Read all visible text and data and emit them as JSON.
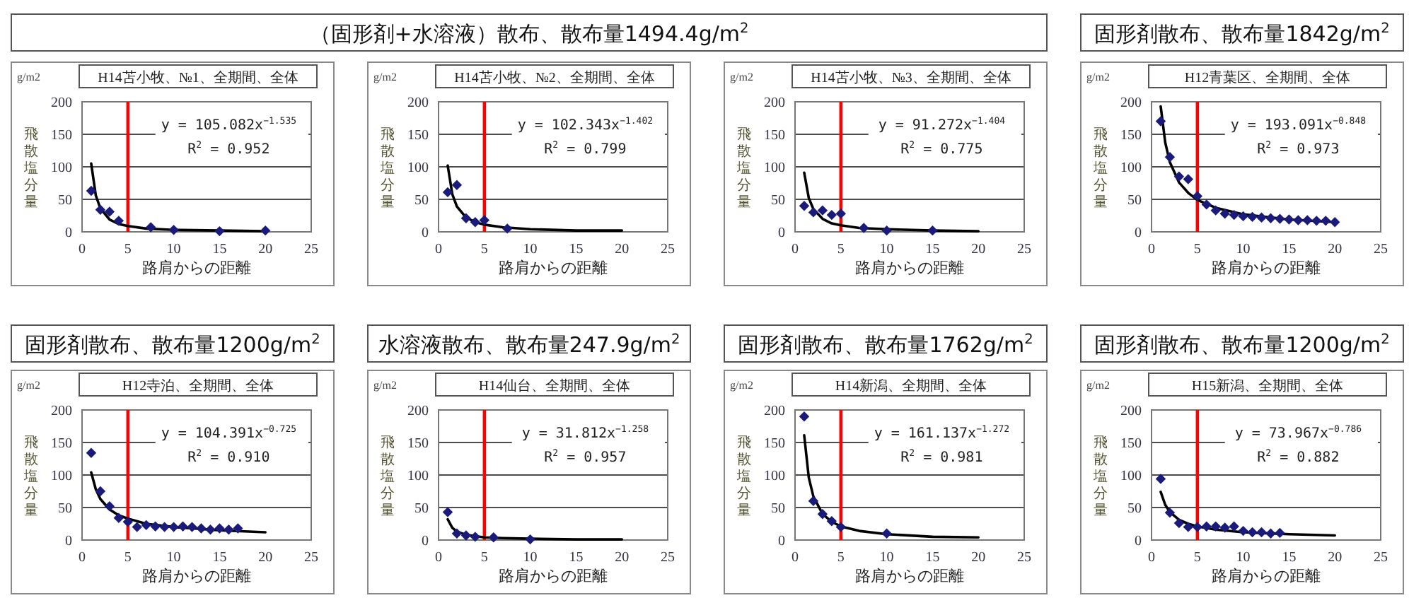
{
  "chart_data": [
    {
      "type": "scatter",
      "title": "H14苫小牧、№1、全期間、全体",
      "xlabel": "路肩からの距離",
      "ylabel": "飛散塩分量",
      "annotations": [
        "g/m2",
        "y = 105.082x$^{−1.535}$",
        "R$^{2}$ = 0.952"
      ],
      "xlim": [
        0,
        25
      ],
      "xticks": [
        0,
        5,
        10,
        15,
        20,
        25
      ],
      "ylim": [
        0,
        200
      ],
      "yticks": [
        0,
        50,
        100,
        150,
        200
      ],
      "grid": "y",
      "ref_lines": [
        {
          "axis": "x",
          "value": 5,
          "color": "#ff0000"
        }
      ],
      "series": [
        {
          "type": "scatter",
          "marker": "diamond",
          "color": "#1a1a7a",
          "x": [
            1,
            2,
            3,
            4,
            7.5,
            10,
            15,
            20
          ],
          "values": [
            63,
            34,
            31,
            17,
            7,
            3,
            1,
            2
          ]
        },
        {
          "type": "line",
          "color": "#000000",
          "x": [
            1,
            1.5,
            2,
            3,
            4,
            5,
            7,
            10,
            15,
            20
          ],
          "values": [
            105,
            56,
            36,
            19,
            12,
            9,
            5,
            3,
            2,
            1
          ]
        }
      ]
    },
    {
      "type": "scatter",
      "subtitle": "（固形剤+水溶液）散布、散布量1494.4g/m$^{2}$",
      "title": "H14苫小牧、№2、全期間、全体",
      "xlabel": "路肩からの距離",
      "ylabel": "飛散塩分量",
      "annotations": [
        "g/m2",
        "y = 102.343x$^{−1.402}$",
        "R$^{2}$ = 0.799"
      ],
      "xlim": [
        0,
        25
      ],
      "xticks": [
        0,
        5,
        10,
        15,
        20,
        25
      ],
      "ylim": [
        0,
        200
      ],
      "yticks": [
        0,
        50,
        100,
        150,
        200
      ],
      "grid": "y",
      "ref_lines": [
        {
          "axis": "x",
          "value": 5,
          "color": "#ff0000"
        }
      ],
      "series": [
        {
          "type": "scatter",
          "marker": "diamond",
          "color": "#1a1a7a",
          "x": [
            1,
            2,
            3,
            4,
            5,
            7.5
          ],
          "values": [
            61,
            72,
            21,
            15,
            18,
            5
          ]
        },
        {
          "type": "line",
          "color": "#000000",
          "x": [
            1,
            1.5,
            2,
            3,
            4,
            5,
            7,
            10,
            15,
            20
          ],
          "values": [
            102,
            58,
            39,
            22,
            15,
            11,
            7,
            4,
            2,
            2
          ]
        }
      ]
    },
    {
      "type": "scatter",
      "title": "H14苫小牧、№3、全期間、全体",
      "xlabel": "路肩からの距離",
      "ylabel": "飛散塩分量",
      "annotations": [
        "g/m2",
        "y = 91.272x$^{−1.404}$",
        "R$^{2}$ = 0.775"
      ],
      "xlim": [
        0,
        25
      ],
      "xticks": [
        0,
        5,
        10,
        15,
        20,
        25
      ],
      "ylim": [
        0,
        200
      ],
      "yticks": [
        0,
        50,
        100,
        150,
        200
      ],
      "grid": "y",
      "ref_lines": [
        {
          "axis": "x",
          "value": 5,
          "color": "#ff0000"
        }
      ],
      "series": [
        {
          "type": "scatter",
          "marker": "diamond",
          "color": "#1a1a7a",
          "x": [
            1,
            2,
            3,
            4,
            5,
            7.5,
            10,
            15
          ],
          "values": [
            40,
            30,
            33,
            26,
            28,
            6,
            2,
            2
          ]
        },
        {
          "type": "line",
          "color": "#000000",
          "x": [
            1,
            1.5,
            2,
            3,
            4,
            5,
            7,
            10,
            15,
            20
          ],
          "values": [
            91,
            52,
            35,
            20,
            13,
            10,
            6,
            4,
            2,
            1
          ]
        }
      ]
    },
    {
      "type": "scatter",
      "subtitle": "固形剤散布、散布量1842g/m$^{2}$",
      "title": "H12青葉区、全期間、全体",
      "xlabel": "路肩からの距離",
      "ylabel": "飛散塩分量",
      "annotations": [
        "g/m2",
        "y = 193.091x$^{−0.848}$",
        "R$^{2}$ = 0.973"
      ],
      "xlim": [
        0,
        25
      ],
      "xticks": [
        0,
        5,
        10,
        15,
        20,
        25
      ],
      "ylim": [
        0,
        200
      ],
      "yticks": [
        0,
        50,
        100,
        150,
        200
      ],
      "grid": "y",
      "ref_lines": [
        {
          "axis": "x",
          "value": 5,
          "color": "#ff0000"
        }
      ],
      "series": [
        {
          "type": "scatter",
          "marker": "diamond",
          "color": "#1a1a7a",
          "x": [
            1,
            2,
            3,
            4,
            5,
            6,
            7,
            8,
            9,
            10,
            11,
            12,
            13,
            14,
            15,
            16,
            17,
            18,
            19,
            20
          ],
          "values": [
            170,
            115,
            85,
            81,
            55,
            42,
            33,
            28,
            26,
            24,
            23,
            22,
            21,
            20,
            19,
            18,
            18,
            17,
            17,
            15
          ]
        },
        {
          "type": "line",
          "color": "#000000",
          "x": [
            1,
            1.5,
            2,
            3,
            4,
            5,
            7,
            10,
            15,
            20
          ],
          "values": [
            193,
            137,
            107,
            76,
            60,
            49,
            37,
            27,
            19,
            15
          ]
        }
      ]
    },
    {
      "type": "scatter",
      "subtitle": "固形剤散布、散布量1200g/m$^{2}$",
      "title": "H12寺泊、全期間、全体",
      "xlabel": "路肩からの距離",
      "ylabel": "飛散塩分量",
      "annotations": [
        "g/m2",
        "y = 104.391x$^{−0.725}$",
        "R$^{2}$ = 0.910"
      ],
      "xlim": [
        0,
        25
      ],
      "xticks": [
        0,
        5,
        10,
        15,
        20,
        25
      ],
      "ylim": [
        0,
        200
      ],
      "yticks": [
        0,
        50,
        100,
        150,
        200
      ],
      "grid": "y",
      "ref_lines": [
        {
          "axis": "x",
          "value": 5,
          "color": "#ff0000"
        }
      ],
      "series": [
        {
          "type": "scatter",
          "marker": "diamond",
          "color": "#1a1a7a",
          "x": [
            1,
            2,
            3,
            4,
            5,
            6,
            7,
            8,
            9,
            10,
            11,
            12,
            13,
            14,
            15,
            16,
            17
          ],
          "values": [
            134,
            75,
            52,
            34,
            28,
            20,
            23,
            21,
            20,
            20,
            21,
            20,
            18,
            16,
            18,
            16,
            18
          ]
        },
        {
          "type": "line",
          "color": "#000000",
          "x": [
            1,
            1.5,
            2,
            3,
            4,
            5,
            7,
            10,
            15,
            20
          ],
          "values": [
            104,
            78,
            63,
            47,
            38,
            33,
            25,
            20,
            15,
            12
          ]
        }
      ]
    },
    {
      "type": "scatter",
      "subtitle": "水溶液散布、散布量247.9g/m$^{2}$",
      "title": "H14仙台、全期間、全体",
      "xlabel": "路肩からの距離",
      "ylabel": "飛散塩分量",
      "annotations": [
        "g/m2",
        "y = 31.812x$^{−1.258}$",
        "R$^{2}$ = 0.957"
      ],
      "xlim": [
        0,
        25
      ],
      "xticks": [
        0,
        5,
        10,
        15,
        20,
        25
      ],
      "ylim": [
        0,
        200
      ],
      "yticks": [
        0,
        50,
        100,
        150,
        200
      ],
      "grid": "y",
      "ref_lines": [
        {
          "axis": "x",
          "value": 5,
          "color": "#ff0000"
        }
      ],
      "series": [
        {
          "type": "scatter",
          "marker": "diamond",
          "color": "#1a1a7a",
          "x": [
            1,
            2,
            3,
            4,
            6,
            10
          ],
          "values": [
            43,
            10,
            7,
            5,
            4,
            1
          ]
        },
        {
          "type": "line",
          "color": "#000000",
          "x": [
            1,
            1.5,
            2,
            3,
            4,
            5,
            7,
            10,
            15,
            20
          ],
          "values": [
            32,
            19,
            13,
            8,
            6,
            4,
            3,
            2,
            1,
            1
          ]
        }
      ]
    },
    {
      "type": "scatter",
      "subtitle": "固形剤散布、散布量1762g/m$^{2}$",
      "title": "H14新潟、全期間、全体",
      "xlabel": "路肩からの距離",
      "ylabel": "飛散塩分量",
      "annotations": [
        "g/m2",
        "y = 161.137x$^{−1.272}$",
        "R$^{2}$ = 0.981"
      ],
      "xlim": [
        0,
        25
      ],
      "xticks": [
        0,
        5,
        10,
        15,
        20,
        25
      ],
      "ylim": [
        0,
        200
      ],
      "yticks": [
        0,
        50,
        100,
        150,
        200
      ],
      "grid": "y",
      "ref_lines": [
        {
          "axis": "x",
          "value": 5,
          "color": "#ff0000"
        }
      ],
      "series": [
        {
          "type": "scatter",
          "marker": "diamond",
          "color": "#1a1a7a",
          "x": [
            1,
            2,
            3,
            4,
            5,
            10
          ],
          "values": [
            190,
            60,
            40,
            29,
            20,
            10
          ]
        },
        {
          "type": "line",
          "color": "#000000",
          "x": [
            1,
            1.5,
            2,
            3,
            4,
            5,
            7,
            10,
            15,
            20
          ],
          "values": [
            161,
            96,
            67,
            40,
            28,
            21,
            14,
            9,
            5,
            4
          ]
        }
      ]
    },
    {
      "type": "scatter",
      "subtitle": "固形剤散布、散布量1200g/m$^{2}$",
      "title": "H15新潟、全期間、全体",
      "xlabel": "路肩からの距離",
      "ylabel": "飛散塩分量",
      "annotations": [
        "g/m2",
        "y = 73.967x$^{−0.786}$",
        "R$^{2}$ = 0.882"
      ],
      "xlim": [
        0,
        25
      ],
      "xticks": [
        0,
        5,
        10,
        15,
        20,
        25
      ],
      "ylim": [
        0,
        200
      ],
      "yticks": [
        0,
        50,
        100,
        150,
        200
      ],
      "grid": "y",
      "ref_lines": [
        {
          "axis": "x",
          "value": 5,
          "color": "#ff0000"
        }
      ],
      "series": [
        {
          "type": "scatter",
          "marker": "diamond",
          "color": "#1a1a7a",
          "x": [
            1,
            2,
            3,
            4,
            5,
            6,
            7,
            8,
            9,
            10,
            11,
            12,
            13,
            14
          ],
          "values": [
            94,
            42,
            26,
            20,
            20,
            21,
            21,
            19,
            21,
            14,
            12,
            12,
            10,
            11
          ]
        },
        {
          "type": "line",
          "color": "#000000",
          "x": [
            1,
            1.5,
            2,
            3,
            4,
            5,
            7,
            10,
            15,
            20
          ],
          "values": [
            74,
            54,
            43,
            31,
            25,
            21,
            16,
            12,
            9,
            7
          ]
        }
      ]
    }
  ]
}
